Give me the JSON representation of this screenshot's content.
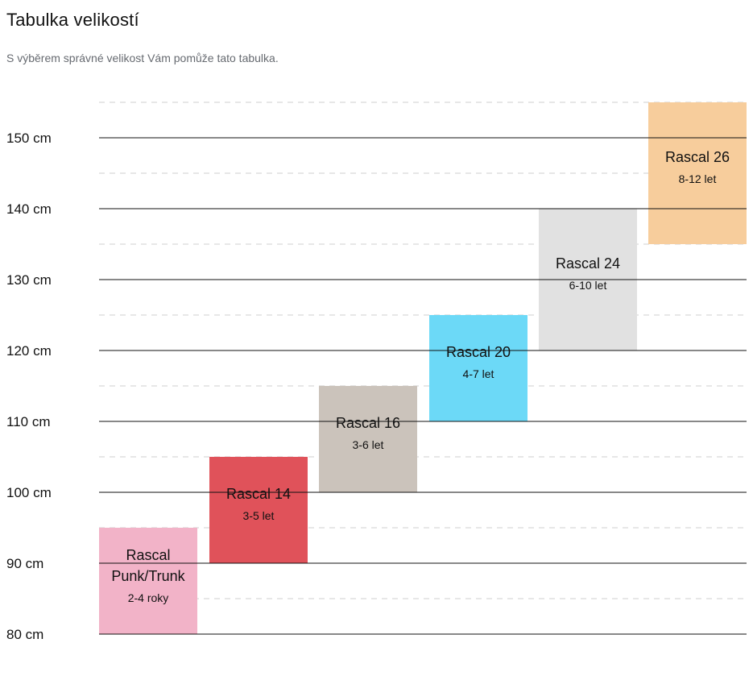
{
  "header": {
    "title": "Tabulka velikostí",
    "subtitle": "S výběrem správné velikost Vám pomůže tato tabulka."
  },
  "chart_data": {
    "type": "bar",
    "title": "Tabulka velikostí",
    "ylabel": "",
    "ylim": [
      80,
      155
    ],
    "grid": true,
    "y_tick_values": [
      80,
      90,
      100,
      110,
      120,
      130,
      140,
      150
    ],
    "y_tick_labels": [
      "80 cm",
      "90 cm",
      "100 cm",
      "110 cm",
      "120 cm",
      "130 cm",
      "140 cm",
      "150 cm"
    ],
    "bars": [
      {
        "name": [
          "Rascal",
          "Punk/Trunk"
        ],
        "age": "2-4 roky",
        "min": 80,
        "max": 95,
        "color": "#f2b3c8"
      },
      {
        "name": [
          "Rascal 14"
        ],
        "age": "3-5 let",
        "min": 90,
        "max": 105,
        "color": "#e0525a"
      },
      {
        "name": [
          "Rascal 16"
        ],
        "age": "3-6 let",
        "min": 100,
        "max": 115,
        "color": "#cbc3bb"
      },
      {
        "name": [
          "Rascal 20"
        ],
        "age": "4-7 let",
        "min": 110,
        "max": 125,
        "color": "#6cd9f7"
      },
      {
        "name": [
          "Rascal 24"
        ],
        "age": "6-10 let",
        "min": 120,
        "max": 140,
        "color": "#e1e1e1"
      },
      {
        "name": [
          "Rascal 26"
        ],
        "age": "8-12 let",
        "min": 135,
        "max": 155,
        "color": "#f7cd9c"
      }
    ]
  }
}
